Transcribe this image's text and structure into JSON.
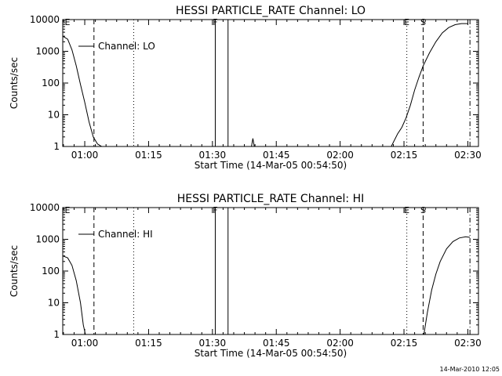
{
  "chart_data": [
    {
      "type": "line",
      "title": "HESSI PARTICLE_RATE Channel: LO",
      "xlabel": "Start Time (14-Mar-05 00:54:50)",
      "ylabel": "Counts/sec",
      "y_scale": "log",
      "ylim": [
        1,
        10000
      ],
      "xlim": [
        "00:54:50",
        "02:32:30"
      ],
      "x_ticks": [
        "01:00",
        "01:15",
        "01:30",
        "01:45",
        "02:00",
        "02:15",
        "02:30"
      ],
      "y_ticks": [
        "1",
        "10",
        "100",
        "1000",
        "10000"
      ],
      "legend": "Channel: LO",
      "series": [
        {
          "name": "Channel: LO",
          "x": [
            "00:54:50",
            "00:56:00",
            "00:57:00",
            "00:58:00",
            "00:59:00",
            "01:00:00",
            "01:01:00",
            "01:02:00",
            "01:03:00",
            "01:04:00",
            "01:39:10",
            "01:39:30",
            "01:39:50",
            "02:12:00",
            "02:13:30",
            "02:14:30",
            "02:15:30",
            "02:16:30",
            "02:17:30",
            "02:18:30",
            "02:19:30",
            "02:21:00",
            "02:22:30",
            "02:24:00",
            "02:25:30",
            "02:27:00",
            "02:28:30",
            "02:30:00"
          ],
          "values": [
            3000,
            2400,
            1100,
            350,
            90,
            25,
            6,
            2,
            1.2,
            1,
            1,
            1.8,
            1,
            1,
            2.5,
            4,
            8,
            20,
            60,
            150,
            350,
            900,
            2000,
            3800,
            5600,
            6900,
            7500,
            7500
          ]
        }
      ],
      "markers": [
        {
          "label": "E",
          "time": "00:54:50",
          "line": "none"
        },
        {
          "label": "",
          "time": "01:02:10",
          "line": "dashed"
        },
        {
          "label": "",
          "time": "01:11:30",
          "line": "dotted"
        },
        {
          "label": "F",
          "time": "01:30:40",
          "line": "solid"
        },
        {
          "label": "",
          "time": "01:33:40",
          "line": "solid"
        },
        {
          "label": "E",
          "time": "02:15:40",
          "line": "dotted"
        },
        {
          "label": "S",
          "time": "02:19:30",
          "line": "dashed"
        },
        {
          "label": "",
          "time": "02:30:30",
          "line": "dash-dot"
        }
      ]
    },
    {
      "type": "line",
      "title": "HESSI PARTICLE_RATE Channel: HI",
      "xlabel": "Start Time (14-Mar-05 00:54:50)",
      "ylabel": "Counts/sec",
      "y_scale": "log",
      "ylim": [
        1,
        10000
      ],
      "xlim": [
        "00:54:50",
        "02:32:30"
      ],
      "x_ticks": [
        "01:00",
        "01:15",
        "01:30",
        "01:45",
        "02:00",
        "02:15",
        "02:30"
      ],
      "y_ticks": [
        "1",
        "10",
        "100",
        "1000",
        "10000"
      ],
      "legend": "Channel: HI",
      "series": [
        {
          "name": "Channel: HI",
          "x": [
            "00:54:50",
            "00:56:00",
            "00:57:00",
            "00:58:00",
            "00:59:00",
            "00:59:40",
            "01:00:10",
            "02:19:40",
            "02:20:30",
            "02:21:30",
            "02:22:30",
            "02:23:30",
            "02:25:00",
            "02:26:30",
            "02:28:00",
            "02:29:30",
            "02:30:30"
          ],
          "values": [
            300,
            260,
            150,
            50,
            10,
            2,
            1,
            1,
            5,
            25,
            80,
            200,
            500,
            850,
            1100,
            1200,
            1150
          ]
        }
      ],
      "markers": [
        {
          "label": "E",
          "time": "00:54:50",
          "line": "none"
        },
        {
          "label": "",
          "time": "01:02:10",
          "line": "dashed"
        },
        {
          "label": "",
          "time": "01:11:30",
          "line": "dotted"
        },
        {
          "label": "F",
          "time": "01:30:40",
          "line": "solid"
        },
        {
          "label": "",
          "time": "01:33:40",
          "line": "solid"
        },
        {
          "label": "E",
          "time": "02:15:40",
          "line": "dotted"
        },
        {
          "label": "S",
          "time": "02:19:30",
          "line": "dashed"
        },
        {
          "label": "",
          "time": "02:30:30",
          "line": "dash-dot"
        }
      ]
    }
  ],
  "footer": {
    "timestamp": "14-Mar-2010 12:05"
  }
}
